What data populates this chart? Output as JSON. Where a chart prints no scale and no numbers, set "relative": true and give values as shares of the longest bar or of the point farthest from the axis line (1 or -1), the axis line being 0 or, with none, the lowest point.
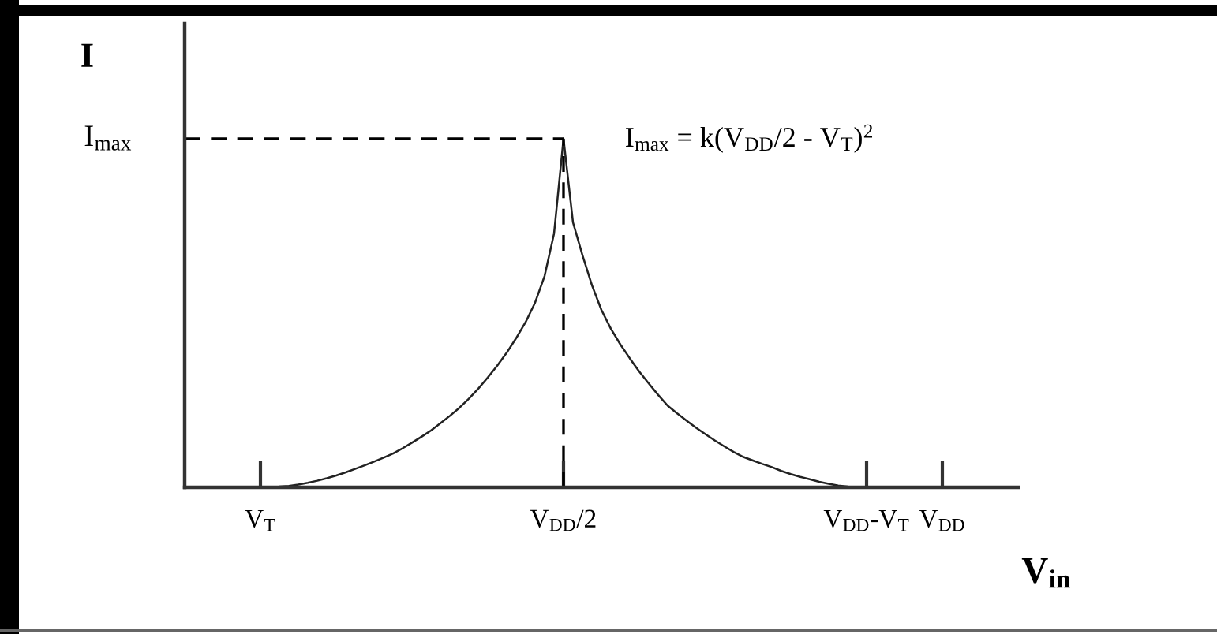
{
  "chart_data": {
    "type": "line",
    "xlabel": "V$_{in}$",
    "ylabel": "I",
    "relative": true,
    "categories": [
      null,
      null,
      null,
      null,
      null,
      null,
      null,
      null,
      "V$_{T}$",
      null,
      null,
      null,
      null,
      null,
      null,
      null,
      null,
      null,
      null,
      null,
      null,
      null,
      null,
      null,
      null,
      null,
      null,
      null,
      null,
      null,
      null,
      null,
      null,
      null,
      null,
      null,
      null,
      null,
      null,
      null,
      "V$_{DD}$/2",
      null,
      null,
      null,
      null,
      null,
      null,
      null,
      null,
      null,
      null,
      null,
      null,
      null,
      null,
      null,
      null,
      null,
      null,
      null,
      null,
      null,
      null,
      null,
      null,
      null,
      null,
      null,
      null,
      null,
      null,
      null,
      "V$_{DD}$-V$_{T}$",
      null,
      null,
      null,
      null,
      null,
      null,
      null,
      "V$_{DD}$",
      null,
      null,
      null,
      null,
      null,
      null,
      null,
      null
    ],
    "series": [
      {
        "color": "#222222",
        "values": [
          null,
          null,
          null,
          null,
          null,
          null,
          null,
          null,
          0,
          0.001,
          0.002,
          0.004,
          0.008,
          0.013,
          0.019,
          0.026,
          0.034,
          0.043,
          0.053,
          0.063,
          0.074,
          0.085,
          0.097,
          0.112,
          0.128,
          0.145,
          0.163,
          0.184,
          0.205,
          0.228,
          0.254,
          0.283,
          0.315,
          0.349,
          0.386,
          0.428,
          0.474,
          0.53,
          0.606,
          0.728,
          1,
          0.76,
          0.666,
          0.58,
          0.509,
          0.455,
          0.41,
          0.37,
          0.332,
          0.298,
          0.265,
          0.234,
          0.212,
          0.191,
          0.171,
          0.152,
          0.134,
          0.117,
          0.101,
          0.087,
          0.077,
          0.067,
          0.058,
          0.047,
          0.038,
          0.03,
          0.023,
          0.016,
          0.01,
          0.005,
          0.002,
          0.001,
          0,
          null,
          null,
          null,
          null,
          null,
          null,
          null,
          null,
          null,
          null,
          null,
          null,
          null,
          null,
          null,
          null
        ]
      }
    ],
    "ref_lines": [
      {
        "axis": "y",
        "value": 1,
        "label": "I$_{max}$",
        "line_style": "dashed",
        "color": "#000000"
      }
    ],
    "annotations": [
      {
        "text": "I$_{max}$ = k(V$_{DD}$/2 - V$_{T}$)$^{2}$",
        "x": "V$_{DD}$/2",
        "y": 1
      }
    ]
  }
}
